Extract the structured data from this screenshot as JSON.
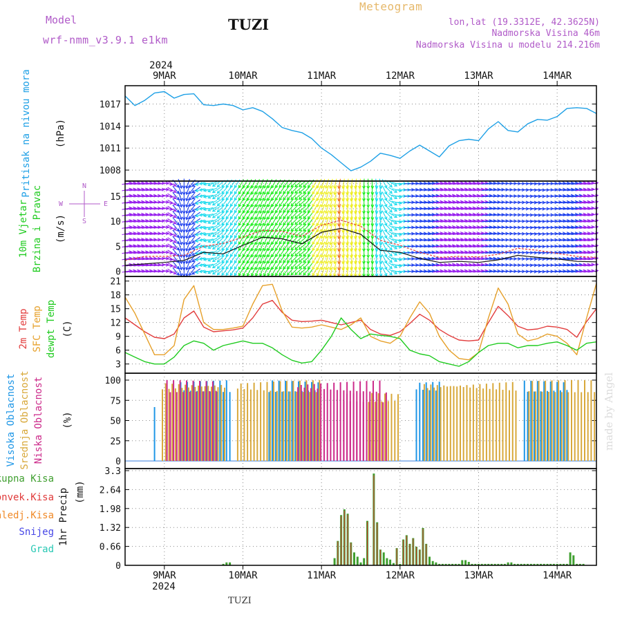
{
  "header": {
    "model_label": "Model",
    "model_name": "wrf-nmm_v3.9.1 e1km",
    "station": "TUZI",
    "meteogram": "Meteogram",
    "lonlat": "lon,lat (19.3312E, 42.3625N)",
    "altitude": "Nadmorska Visina 46m",
    "model_altitude": "Nadmorska Visina u modelu 214.216m",
    "watermark": "made by Angel",
    "footer_station": "TUZI"
  },
  "colors": {
    "pressure": "#1ea0e6",
    "temp2m": "#e23c3c",
    "sfc": "#e6a02a",
    "dewpt": "#1fcb1f",
    "high_cloud": "#1e96e6",
    "mid_cloud": "#d8a83a",
    "low_cloud": "#cc2a8a",
    "total_precip": "#3f9f2f",
    "convective": "#e03a3a",
    "frozen": "#f08a28",
    "snow": "#4646e6",
    "hail": "#28c8b4",
    "label_purple": "#b05ac8"
  },
  "chart_data": [
    {
      "type": "line",
      "panel": "pressure",
      "ylabel": "Pritisak na nivou mora",
      "unit": "(hPa)",
      "yticks": [
        1008,
        1011,
        1014,
        1017
      ],
      "ylim": [
        1006.5,
        1019.5
      ],
      "x_day_labels": [
        "9MAR",
        "10MAR",
        "11MAR",
        "12MAR",
        "13MAR",
        "14MAR"
      ],
      "year_label": "2024",
      "x_start_hours_before_9MAR": 12,
      "x_hours": [
        0,
        3,
        6,
        9,
        12,
        15,
        18,
        21,
        24,
        27,
        30,
        33,
        36,
        39,
        42,
        45,
        48,
        51,
        54,
        57,
        60,
        63,
        66,
        69,
        72,
        75,
        78,
        81,
        84,
        87,
        90,
        93,
        96,
        99,
        102,
        105,
        108,
        111,
        114,
        117,
        120,
        123,
        126,
        129,
        132,
        135,
        138,
        141,
        144
      ],
      "values": [
        1018.1,
        1016.8,
        1017.5,
        1018.5,
        1018.7,
        1017.8,
        1018.3,
        1018.4,
        1016.9,
        1016.8,
        1017.0,
        1016.8,
        1016.2,
        1016.5,
        1016.0,
        1015.0,
        1013.8,
        1013.4,
        1013.1,
        1012.3,
        1011.0,
        1010.1,
        1009.0,
        1007.9,
        1008.4,
        1009.2,
        1010.3,
        1010.0,
        1009.6,
        1010.6,
        1011.4,
        1010.6,
        1009.8,
        1011.3,
        1012.0,
        1012.2,
        1012.0,
        1013.6,
        1014.6,
        1013.4,
        1013.2,
        1014.3,
        1014.9,
        1014.8,
        1015.3,
        1016.4,
        1016.5,
        1016.4,
        1015.7
      ]
    },
    {
      "type": "line",
      "panel": "wind",
      "ylabel": "10m Vjetar Brzina i Pravac",
      "unit": "(m/s)",
      "compass_labels": [
        "N",
        "W",
        "E",
        "S"
      ],
      "yticks": [
        0,
        2.5,
        5,
        7.5,
        10,
        12.5,
        15,
        17.5
      ],
      "tick_labels": [
        "0",
        "",
        "5",
        "",
        "10",
        "",
        "15",
        ""
      ],
      "ylim": [
        -1,
        18
      ],
      "x_hours": [
        0,
        6,
        12,
        18,
        24,
        30,
        36,
        42,
        48,
        54,
        60,
        66,
        72,
        78,
        84,
        90,
        96,
        102,
        108,
        114,
        120,
        126,
        132,
        138,
        144
      ],
      "series": [
        {
          "name": "speed",
          "values": [
            1.2,
            1.5,
            1.8,
            2.2,
            3.8,
            3.5,
            5.2,
            6.8,
            6.5,
            5.5,
            7.8,
            8.6,
            7.4,
            4.2,
            3.8,
            2.6,
            1.8,
            2.0,
            1.8,
            2.3,
            3.2,
            2.8,
            2.5,
            2.0,
            1.9
          ]
        },
        {
          "name": "gust",
          "values": [
            2.2,
            3.0,
            3.0,
            3.2,
            5.0,
            5.6,
            6.8,
            8.2,
            8.0,
            7.0,
            9.2,
            10.2,
            9.0,
            6.2,
            5.2,
            3.8,
            2.8,
            3.0,
            2.9,
            3.4,
            4.6,
            4.2,
            3.6,
            3.0,
            2.8
          ]
        }
      ],
      "direction_deg": [
        80,
        80,
        85,
        180,
        270,
        220,
        210,
        200,
        215,
        230,
        200,
        190,
        185,
        170,
        90,
        85,
        80,
        80,
        80,
        85,
        90,
        95,
        85,
        80,
        80
      ]
    },
    {
      "type": "line",
      "panel": "temperature",
      "ylabel_lines": [
        "2m Temp",
        "SFC Temp",
        "dewpt Temp"
      ],
      "unit": "(C)",
      "yticks": [
        3,
        6,
        9,
        12,
        15,
        18,
        21
      ],
      "ylim": [
        1,
        22
      ],
      "x_hours": [
        0,
        3,
        6,
        9,
        12,
        15,
        18,
        21,
        24,
        27,
        30,
        33,
        36,
        39,
        42,
        45,
        48,
        51,
        54,
        57,
        60,
        63,
        66,
        69,
        72,
        75,
        78,
        81,
        84,
        87,
        90,
        93,
        96,
        99,
        102,
        105,
        108,
        111,
        114,
        117,
        120,
        123,
        126,
        129,
        132,
        135,
        138,
        141,
        144
      ],
      "series": [
        {
          "name": "2m Temp",
          "values": [
            13.0,
            11.5,
            10.0,
            8.8,
            8.5,
            9.5,
            13.0,
            14.5,
            11.0,
            10.0,
            10.2,
            10.4,
            10.8,
            13.0,
            16.0,
            16.8,
            14.2,
            12.5,
            12.2,
            12.3,
            12.5,
            12.0,
            11.5,
            12.0,
            12.5,
            10.5,
            9.5,
            9.2,
            10.0,
            11.8,
            13.8,
            12.5,
            10.5,
            9.2,
            8.2,
            8.0,
            8.2,
            12.0,
            15.5,
            13.5,
            11.2,
            10.4,
            10.6,
            11.2,
            11.0,
            10.5,
            8.8,
            12.2,
            15.0
          ]
        },
        {
          "name": "SFC Temp",
          "values": [
            17.5,
            14.0,
            9.5,
            5.0,
            5.0,
            7.0,
            17.0,
            20.0,
            12.0,
            10.5,
            10.5,
            10.8,
            11.2,
            16.0,
            20.0,
            20.3,
            14.5,
            11.0,
            10.8,
            11.0,
            11.5,
            11.0,
            10.5,
            11.5,
            13.0,
            9.0,
            8.0,
            7.5,
            9.0,
            13.0,
            16.5,
            14.0,
            9.0,
            6.0,
            4.2,
            3.9,
            5.5,
            13.0,
            19.5,
            16.0,
            9.5,
            8.0,
            8.5,
            9.5,
            9.0,
            7.5,
            5.0,
            13.0,
            20.5
          ]
        },
        {
          "name": "dewpt Temp",
          "values": [
            5.5,
            4.5,
            3.5,
            3.0,
            3.0,
            4.5,
            7.0,
            8.0,
            7.5,
            6.0,
            7.0,
            7.5,
            8.0,
            7.5,
            7.5,
            6.5,
            5.0,
            3.8,
            3.2,
            3.5,
            6.0,
            9.0,
            13.0,
            10.5,
            8.5,
            9.5,
            9.2,
            9.0,
            8.5,
            6.0,
            5.2,
            4.8,
            3.5,
            3.0,
            2.5,
            3.5,
            5.5,
            7.0,
            7.5,
            7.5,
            6.5,
            7.0,
            7.0,
            7.5,
            7.8,
            7.0,
            6.0,
            7.5,
            7.8
          ]
        }
      ]
    },
    {
      "type": "bar",
      "panel": "cloud",
      "ylabel_lines": [
        "Visoka Oblacnost",
        "Srednja Oblacnost",
        "Niska Oblacnost"
      ],
      "unit": "(%)",
      "yticks": [
        0,
        25,
        50,
        75,
        100
      ],
      "ylim": [
        0,
        100
      ],
      "x_range_hours": [
        0,
        144
      ],
      "series": [
        {
          "name": "Visoka Oblacnost",
          "segments": [
            [
              9,
              10,
              70
            ],
            [
              17,
              33,
              100
            ],
            [
              44,
              60,
              100
            ],
            [
              89,
              97,
              100
            ],
            [
              122,
              136,
              100
            ]
          ]
        },
        {
          "name": "Srednja Oblacnost",
          "segments": [
            [
              11,
              31,
              100
            ],
            [
              34,
              60,
              100
            ],
            [
              74,
              84,
              85
            ],
            [
              91,
              120,
              100
            ],
            [
              123,
              144,
              100
            ]
          ]
        },
        {
          "name": "Niska Oblacnost",
          "segments": [
            [
              12,
              28,
              100
            ],
            [
              52,
              78,
              100
            ],
            [
              66,
              80,
              85
            ]
          ]
        }
      ]
    },
    {
      "type": "bar",
      "panel": "precipitation",
      "ylabel": "1hr Precip",
      "unit": "(mm)",
      "legend": [
        "Ukupna Kisa",
        "Konvek.Kisa",
        "Zaledj.Kisa",
        "Snijeg",
        "Grad"
      ],
      "yticks": [
        0,
        0.66,
        1.32,
        1.98,
        2.64,
        3.3
      ],
      "ylim": [
        0,
        3.3
      ],
      "bottom_day_labels": [
        "9MAR",
        "10MAR",
        "11MAR",
        "12MAR",
        "13MAR",
        "14MAR"
      ],
      "bottom_year_label": "2024",
      "x_hours": [
        30,
        31,
        32,
        64,
        65,
        66,
        67,
        68,
        69,
        70,
        71,
        72,
        73,
        74,
        76,
        77,
        78,
        79,
        80,
        81,
        82,
        83,
        84,
        85,
        86,
        87,
        88,
        89,
        90,
        91,
        92,
        93,
        94,
        95,
        96,
        97,
        98,
        99,
        100,
        101,
        102,
        103,
        104,
        105,
        106,
        107,
        108,
        109,
        110,
        111,
        112,
        113,
        114,
        115,
        116,
        117,
        118,
        119,
        120,
        121,
        122,
        123,
        124,
        125,
        126,
        127,
        128,
        129,
        130,
        131,
        132,
        133,
        134,
        135,
        136,
        137,
        138,
        139,
        140
      ],
      "values": [
        0.05,
        0.1,
        0.1,
        0.25,
        0.85,
        1.75,
        1.95,
        1.8,
        0.8,
        0.45,
        0.3,
        0.1,
        0.25,
        1.55,
        3.2,
        1.5,
        0.55,
        0.45,
        0.25,
        0.2,
        0.08,
        0.6,
        0.05,
        0.9,
        1.05,
        0.75,
        0.95,
        0.65,
        0.55,
        1.3,
        0.75,
        0.3,
        0.15,
        0.1,
        0.05,
        0.05,
        0.05,
        0.05,
        0.05,
        0.05,
        0.05,
        0.18,
        0.18,
        0.12,
        0.05,
        0.05,
        0.05,
        0.05,
        0.05,
        0.05,
        0.05,
        0.05,
        0.05,
        0.05,
        0.05,
        0.1,
        0.1,
        0.05,
        0.05,
        0.05,
        0.05,
        0.05,
        0.05,
        0.05,
        0.05,
        0.05,
        0.05,
        0.05,
        0.05,
        0.05,
        0.05,
        0.05,
        0.05,
        0.05,
        0.45,
        0.35,
        0.05,
        0.05,
        0.05
      ]
    }
  ]
}
